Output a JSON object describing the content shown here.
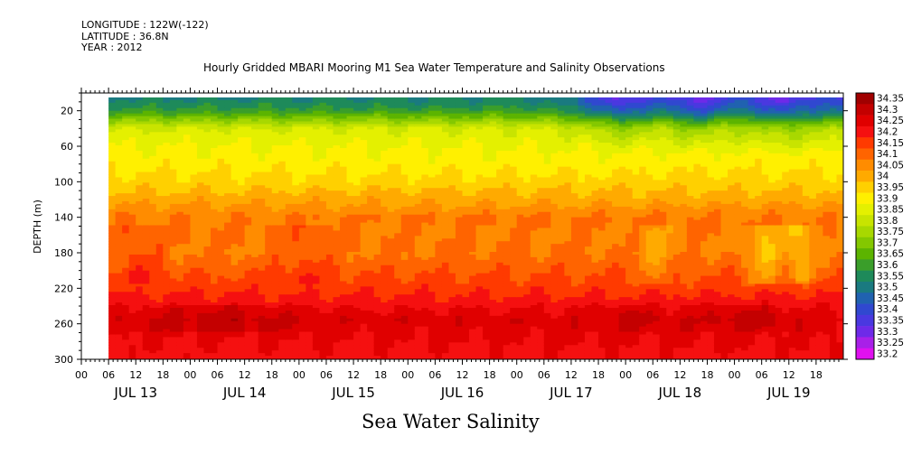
{
  "meta": {
    "longitude": "LONGITUDE : 122W(-122)",
    "latitude": "LATITUDE : 36.8N",
    "year": "YEAR : 2012"
  },
  "chart_data": {
    "type": "heatmap",
    "title": "Hourly Gridded MBARI Mooring M1 Sea Water Temperature and Salinity Observations",
    "xlabel": "Sea Water Salinity",
    "ylabel": "DEPTH (m)",
    "y_axis": {
      "inverted": true,
      "range": [
        0,
        300
      ],
      "ticks": [
        20,
        60,
        100,
        140,
        180,
        220,
        260,
        300
      ]
    },
    "x_axis": {
      "range_hours": [
        "JUL 13 00",
        "JUL 20 00"
      ],
      "data_start": "JUL 13 06",
      "hour_tick_labels": [
        "00",
        "06",
        "12",
        "18"
      ],
      "day_labels": [
        "JUL 13",
        "JUL 14",
        "JUL 15",
        "JUL 16",
        "JUL 17",
        "JUL 18",
        "JUL 19"
      ]
    },
    "colorbar": {
      "levels": [
        "34.35",
        "34.3",
        "34.25",
        "34.2",
        "34.15",
        "34.1",
        "34.05",
        "34",
        "33.95",
        "33.9",
        "33.85",
        "33.8",
        "33.75",
        "33.7",
        "33.65",
        "33.6",
        "33.55",
        "33.5",
        "33.45",
        "33.4",
        "33.35",
        "33.3",
        "33.25",
        "33.2"
      ],
      "colors": [
        "#a00000",
        "#c40000",
        "#e00000",
        "#f51010",
        "#ff3a00",
        "#ff6400",
        "#ff8c00",
        "#ffaa00",
        "#ffd000",
        "#fff000",
        "#e4f000",
        "#c8e400",
        "#a8d800",
        "#84c800",
        "#5cb400",
        "#3a9e2a",
        "#1e8a5a",
        "#1a7a80",
        "#2062b0",
        "#3048d0",
        "#4a38e0",
        "#6e2ae8",
        "#a820e8",
        "#e010f0"
      ]
    },
    "profile": [
      {
        "depth": 8,
        "salinity": 33.55
      },
      {
        "depth": 20,
        "salinity": 33.62
      },
      {
        "depth": 40,
        "salinity": 33.85
      },
      {
        "depth": 60,
        "salinity": 33.9
      },
      {
        "depth": 80,
        "salinity": 33.93
      },
      {
        "depth": 100,
        "salinity": 33.97
      },
      {
        "depth": 120,
        "salinity": 34.03
      },
      {
        "depth": 140,
        "salinity": 34.1
      },
      {
        "depth": 180,
        "salinity": 34.1
      },
      {
        "depth": 220,
        "salinity": 34.18
      },
      {
        "depth": 255,
        "salinity": 34.28
      },
      {
        "depth": 300,
        "salinity": 34.23
      }
    ]
  }
}
